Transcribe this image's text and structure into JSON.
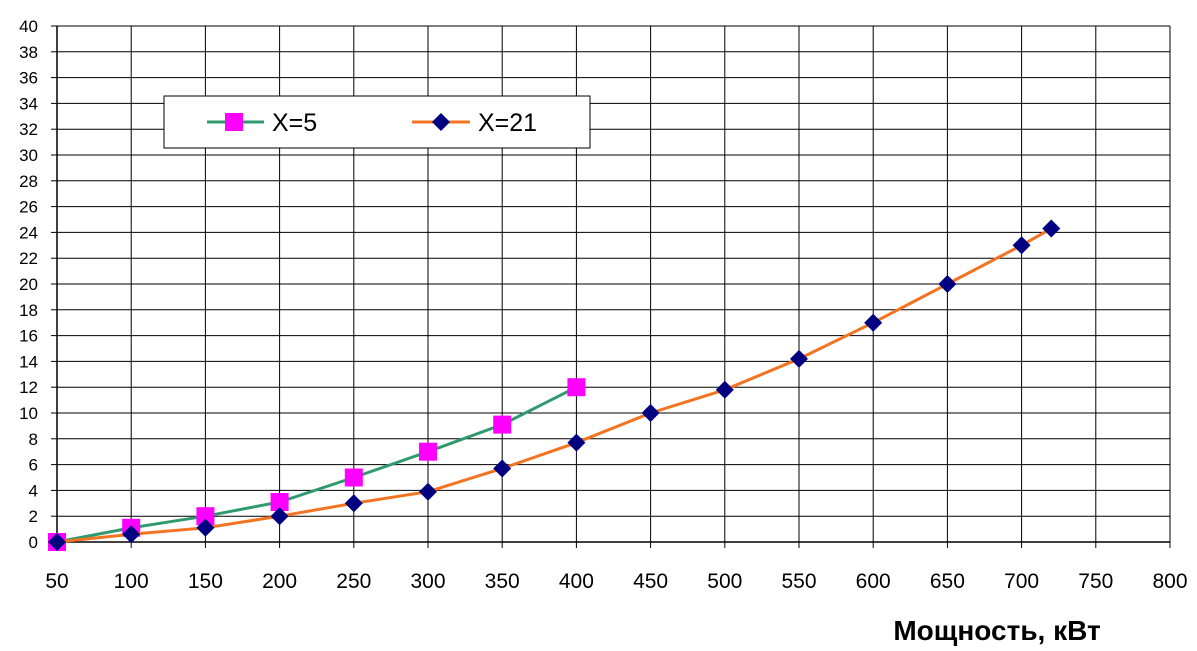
{
  "chart_data": {
    "type": "line",
    "xlabel": "Мощность, кВт",
    "ylabel": "",
    "title": "",
    "xlim": [
      50,
      800
    ],
    "ylim": [
      0,
      40
    ],
    "x_ticks": [
      50,
      100,
      150,
      200,
      250,
      300,
      350,
      400,
      450,
      500,
      550,
      600,
      650,
      700,
      750,
      800
    ],
    "y_ticks": [
      0,
      2,
      4,
      6,
      8,
      10,
      12,
      14,
      16,
      18,
      20,
      22,
      24,
      26,
      28,
      30,
      32,
      34,
      36,
      38,
      40
    ],
    "grid": true,
    "legend_position": "top-left",
    "series": [
      {
        "name": "X=5",
        "line_color": "#2e9a6e",
        "marker_color": "#ff00ff",
        "marker": "square",
        "x": [
          50,
          100,
          150,
          200,
          250,
          300,
          350,
          400
        ],
        "y": [
          0,
          1.1,
          2,
          3.1,
          5,
          7,
          9.1,
          12
        ]
      },
      {
        "name": "X=21",
        "line_color": "#f47321",
        "marker_color": "#000080",
        "marker": "diamond",
        "x": [
          50,
          100,
          150,
          200,
          250,
          300,
          350,
          400,
          450,
          500,
          550,
          600,
          650,
          700,
          720
        ],
        "y": [
          0,
          0.6,
          1.1,
          2,
          3,
          3.9,
          5.7,
          7.7,
          10,
          11.8,
          14.2,
          17,
          20,
          23,
          24.3
        ]
      }
    ]
  }
}
